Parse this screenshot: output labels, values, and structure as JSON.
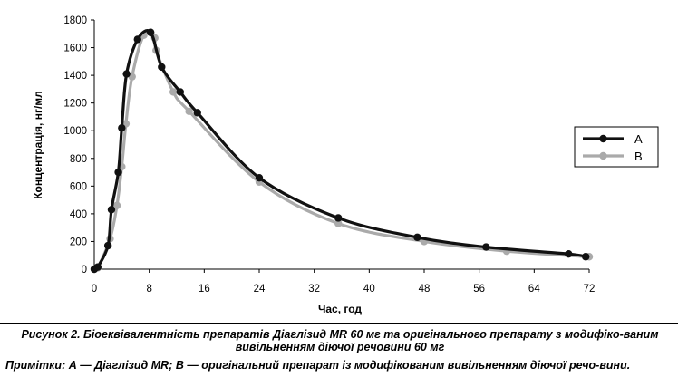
{
  "chart_data": {
    "type": "line",
    "xlabel": "Час, год",
    "ylabel": "Концентрація, нг/мл",
    "xlim": [
      0,
      72
    ],
    "ylim": [
      0,
      1800
    ],
    "xticks": [
      0,
      8,
      16,
      24,
      32,
      40,
      48,
      56,
      64,
      72
    ],
    "yticks": [
      0,
      200,
      400,
      600,
      800,
      1000,
      1200,
      1400,
      1600,
      1800
    ],
    "legend_position": "right",
    "grid": false,
    "series": [
      {
        "name": "A",
        "color": "#111111",
        "x": [
          0,
          0.5,
          2,
          2.5,
          3.5,
          4,
          4.7,
          6.3,
          8.2,
          9.8,
          12.5,
          15,
          24,
          35.5,
          47,
          57,
          69,
          71.5
        ],
        "y": [
          0,
          15,
          170,
          430,
          700,
          1020,
          1410,
          1660,
          1710,
          1460,
          1280,
          1130,
          660,
          370,
          230,
          160,
          110,
          90
        ]
      },
      {
        "name": "B",
        "color": "#aaaaaa",
        "x": [
          0,
          0.5,
          2.3,
          3.3,
          4,
          4.6,
          5.5,
          7.2,
          8.8,
          9,
          11.5,
          13.8,
          24,
          35.5,
          48,
          60,
          72
        ],
        "y": [
          0,
          10,
          220,
          460,
          740,
          1050,
          1390,
          1690,
          1670,
          1580,
          1280,
          1140,
          630,
          330,
          200,
          130,
          90
        ]
      }
    ]
  },
  "caption": {
    "figure": "Рисунок 2. Біоеквівалентність препаратів Діаглізид MR 60 мг та оригінального препарату з модифіко-ваним вивільненням діючої речовини 60 мг",
    "notes": "Примітки: А — Діаглізид MR; В — оригінальний препарат із модифікованим вивільненням діючої речо-вини."
  }
}
